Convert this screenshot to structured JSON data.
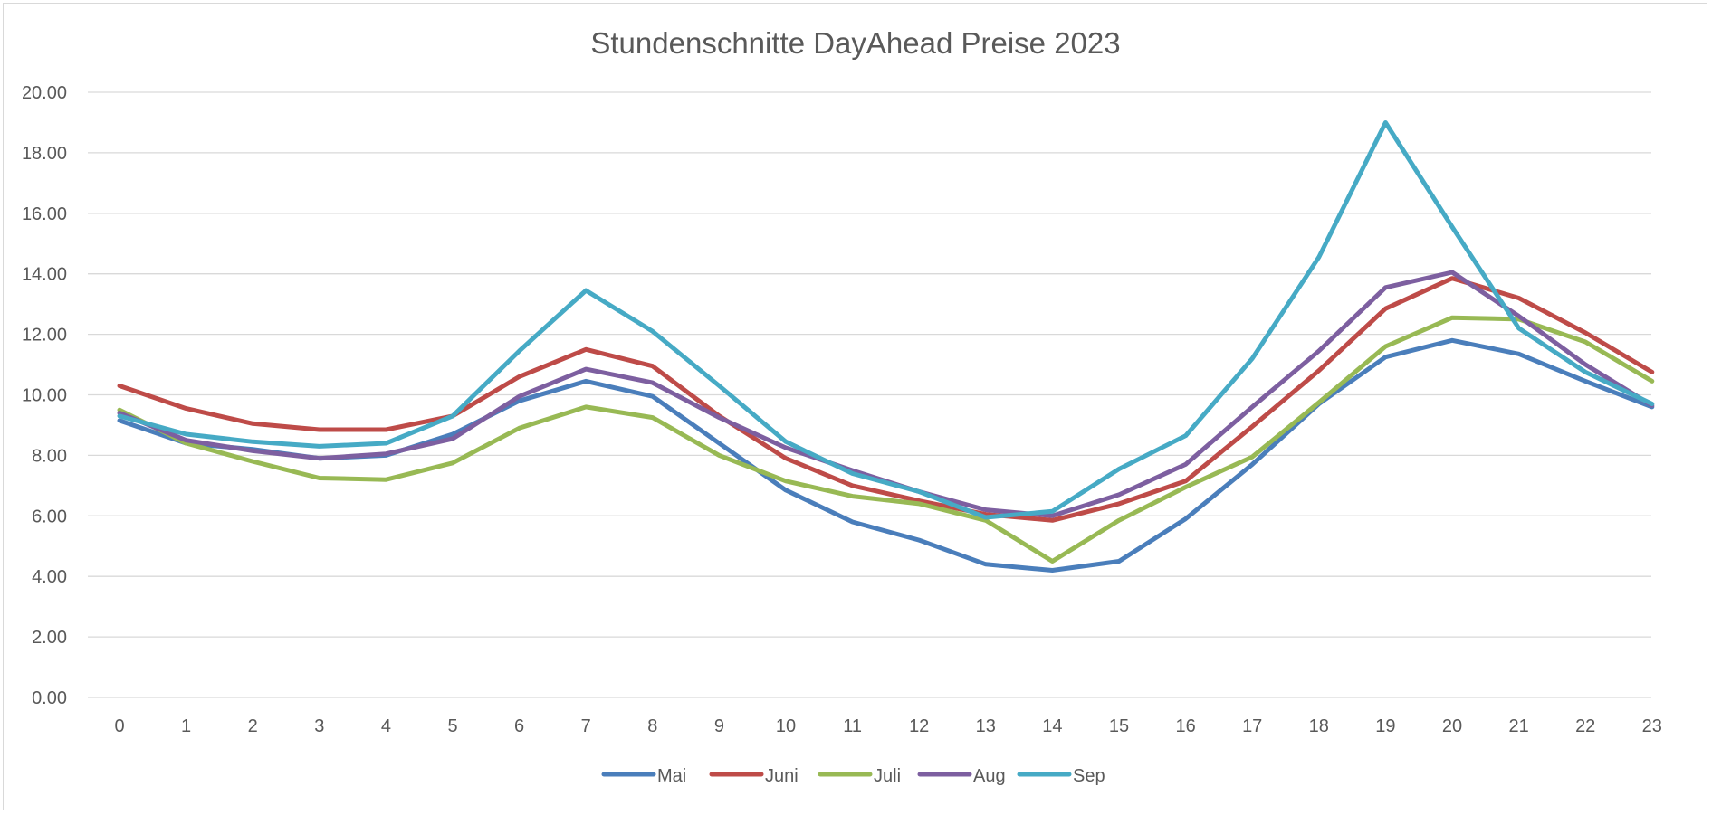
{
  "chart_data": {
    "type": "line",
    "title": "Stundenschnitte DayAhead Preise 2023",
    "xlabel": "",
    "ylabel": "",
    "x": [
      "0",
      "1",
      "2",
      "3",
      "4",
      "5",
      "6",
      "7",
      "8",
      "9",
      "10",
      "11",
      "12",
      "13",
      "14",
      "15",
      "16",
      "17",
      "18",
      "19",
      "20",
      "21",
      "22",
      "23"
    ],
    "ylim": [
      0,
      20
    ],
    "yticks": [
      "0.00",
      "2.00",
      "4.00",
      "6.00",
      "8.00",
      "10.00",
      "12.00",
      "14.00",
      "16.00",
      "18.00",
      "20.00"
    ],
    "grid": true,
    "legend": "bottom",
    "series": [
      {
        "name": "Mai",
        "color": "#4a7ebb",
        "values": [
          9.15,
          8.4,
          8.2,
          7.9,
          8.0,
          8.7,
          9.8,
          10.45,
          9.95,
          8.4,
          6.85,
          5.8,
          5.2,
          4.4,
          4.2,
          4.5,
          5.9,
          7.7,
          9.7,
          11.25,
          11.8,
          11.35,
          10.45,
          9.6
        ]
      },
      {
        "name": "Juni",
        "color": "#be4b48",
        "values": [
          10.3,
          9.55,
          9.05,
          8.85,
          8.85,
          9.3,
          10.6,
          11.5,
          10.95,
          9.3,
          7.9,
          7.0,
          6.5,
          6.05,
          5.85,
          6.4,
          7.15,
          8.95,
          10.8,
          12.85,
          13.85,
          13.2,
          12.05,
          10.75
        ]
      },
      {
        "name": "Juli",
        "color": "#98b954",
        "values": [
          9.5,
          8.4,
          7.8,
          7.25,
          7.2,
          7.75,
          8.9,
          9.6,
          9.25,
          8.0,
          7.15,
          6.65,
          6.4,
          5.85,
          4.5,
          5.85,
          6.95,
          7.95,
          9.75,
          11.6,
          12.55,
          12.5,
          11.75,
          10.45
        ]
      },
      {
        "name": "Aug",
        "color": "#7d5fa0",
        "values": [
          9.4,
          8.5,
          8.15,
          7.9,
          8.05,
          8.55,
          9.95,
          10.85,
          10.4,
          9.25,
          8.25,
          7.5,
          6.8,
          6.2,
          6.0,
          6.7,
          7.7,
          9.6,
          11.45,
          13.55,
          14.05,
          12.6,
          11.0,
          9.65
        ]
      },
      {
        "name": "Sep",
        "color": "#46aac5",
        "values": [
          9.3,
          8.7,
          8.45,
          8.3,
          8.4,
          9.3,
          11.45,
          13.45,
          12.1,
          10.3,
          8.45,
          7.4,
          6.8,
          5.95,
          6.15,
          7.55,
          8.65,
          11.2,
          14.55,
          19.0,
          15.55,
          12.2,
          10.75,
          9.7
        ]
      }
    ]
  }
}
